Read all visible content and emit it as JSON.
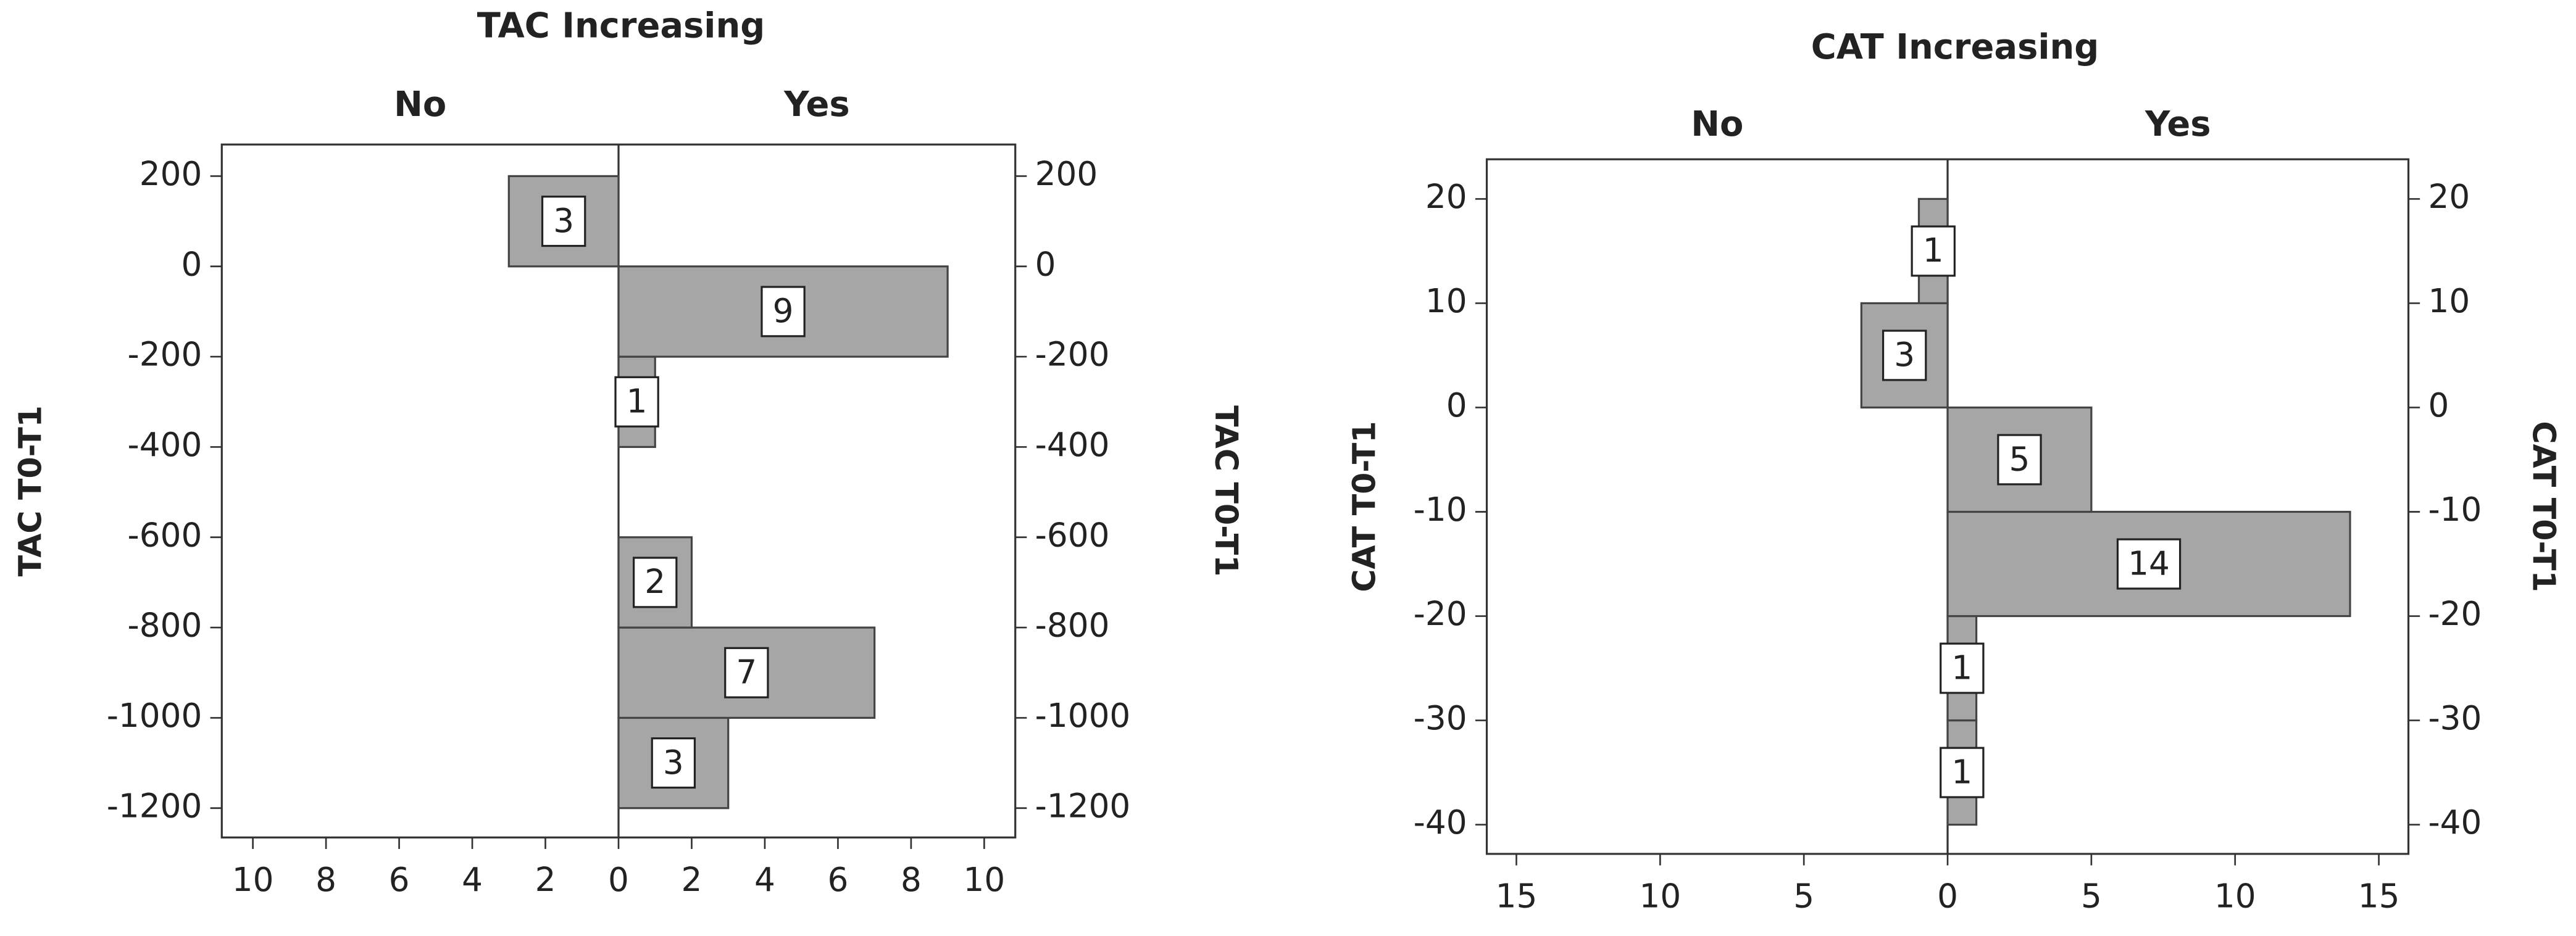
{
  "chart_data": [
    {
      "type": "histogram",
      "title": "TAC Increasing",
      "y_label": "TAC T0-T1",
      "bins": [
        -1200,
        -1000,
        -800,
        -600,
        -400,
        -200,
        0,
        200
      ],
      "series": [
        {
          "name": "No",
          "color": "#a6a6a6",
          "values": [
            0,
            0,
            0,
            0,
            0,
            0,
            3
          ]
        },
        {
          "name": "Yes",
          "color": "#a6a6a6",
          "values": [
            3,
            7,
            2,
            0,
            1,
            9,
            0
          ]
        }
      ],
      "ylim": [
        -1265,
        270
      ],
      "yticks": [
        200,
        0,
        -200,
        -400,
        -600,
        -800,
        -1000,
        -1200
      ],
      "xlim": [
        0,
        10.85
      ],
      "xticks": [
        0,
        2,
        4,
        6,
        8,
        10
      ]
    },
    {
      "type": "histogram",
      "title": "CAT Increasing",
      "y_label": "CAT T0-T1",
      "bins": [
        -40,
        -30,
        -20,
        -10,
        0,
        10,
        20
      ],
      "series": [
        {
          "name": "No",
          "color": "#a6a6a6",
          "values": [
            0,
            0,
            0,
            0,
            3,
            1
          ]
        },
        {
          "name": "Yes",
          "color": "#a6a6a6",
          "values": [
            1,
            1,
            14,
            5,
            0,
            0
          ]
        }
      ],
      "ylim": [
        -42.8,
        23.8
      ],
      "yticks": [
        20,
        10,
        0,
        -10,
        -20,
        -30,
        -40
      ],
      "xlim": [
        0,
        16.03
      ],
      "xticks": [
        0,
        5,
        10,
        15
      ]
    }
  ]
}
